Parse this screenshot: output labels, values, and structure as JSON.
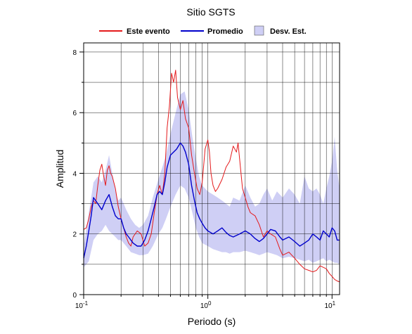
{
  "chart_data": {
    "type": "line",
    "title": "Sitio SGTS",
    "xlabel": "Periodo (s)",
    "ylabel": "Amplitud",
    "xscale": "log",
    "xlim": [
      0.1,
      11.5
    ],
    "ylim": [
      0,
      8.3
    ],
    "grid": true,
    "legend_position": "top",
    "x_tick_labels": [
      {
        "value": 0.1,
        "base": "10",
        "exp": "-1"
      },
      {
        "value": 1,
        "base": "10",
        "exp": "0"
      },
      {
        "value": 10,
        "base": "10",
        "exp": "1"
      }
    ],
    "y_ticks": [
      0,
      2,
      4,
      6,
      8
    ],
    "y_tick_labels": [
      "0",
      "2",
      "4",
      "6",
      "8"
    ],
    "colors": {
      "event": "#e41a1c",
      "mean": "#0000cc",
      "band": "#cfcff5"
    },
    "legend": [
      {
        "label": "Este evento",
        "kind": "line",
        "color": "#e41a1c"
      },
      {
        "label": "Promedio",
        "kind": "line",
        "color": "#0000cc"
      },
      {
        "label": "Desv. Est.",
        "kind": "area",
        "color": "#cfcff5"
      }
    ],
    "series": [
      {
        "name": "Este evento",
        "color": "#e41a1c",
        "x": [
          0.1,
          0.105,
          0.11,
          0.115,
          0.12,
          0.125,
          0.13,
          0.135,
          0.14,
          0.145,
          0.15,
          0.155,
          0.16,
          0.165,
          0.17,
          0.18,
          0.19,
          0.2,
          0.21,
          0.22,
          0.23,
          0.24,
          0.25,
          0.27,
          0.29,
          0.31,
          0.33,
          0.35,
          0.37,
          0.39,
          0.41,
          0.43,
          0.45,
          0.47,
          0.49,
          0.51,
          0.53,
          0.55,
          0.57,
          0.6,
          0.63,
          0.66,
          0.7,
          0.74,
          0.78,
          0.82,
          0.86,
          0.9,
          0.95,
          1.0,
          1.03,
          1.06,
          1.1,
          1.15,
          1.2,
          1.3,
          1.4,
          1.5,
          1.6,
          1.7,
          1.75,
          1.8,
          1.9,
          2.0,
          2.1,
          2.2,
          2.4,
          2.6,
          2.8,
          3.0,
          3.2,
          3.5,
          3.8,
          4.0,
          4.5,
          5.0,
          5.5,
          6.0,
          6.5,
          7.0,
          7.5,
          8.0,
          8.5,
          9.0,
          9.5,
          10.0,
          10.5,
          11.0,
          11.5
        ],
        "y": [
          2.15,
          2.2,
          2.5,
          2.9,
          3.1,
          3.0,
          3.6,
          4.1,
          4.3,
          3.9,
          3.6,
          4.1,
          4.25,
          4.0,
          3.9,
          3.5,
          2.9,
          2.5,
          2.2,
          1.9,
          1.7,
          1.6,
          1.9,
          2.1,
          2.0,
          1.6,
          1.7,
          2.0,
          2.7,
          3.3,
          3.6,
          3.3,
          4.0,
          5.5,
          6.2,
          7.3,
          7.0,
          7.4,
          6.5,
          6.1,
          6.4,
          5.8,
          5.5,
          4.6,
          4.0,
          3.5,
          3.3,
          3.7,
          4.8,
          5.1,
          4.7,
          4.0,
          3.6,
          3.4,
          3.5,
          3.8,
          4.2,
          4.4,
          4.9,
          4.7,
          5.0,
          4.5,
          3.5,
          3.2,
          2.9,
          2.7,
          2.6,
          2.3,
          1.9,
          2.1,
          2.0,
          1.9,
          1.5,
          1.3,
          1.4,
          1.2,
          1.0,
          0.85,
          0.8,
          0.75,
          0.8,
          0.95,
          0.9,
          0.85,
          0.7,
          0.6,
          0.5,
          0.45,
          0.42
        ]
      },
      {
        "name": "Promedio",
        "color": "#0000cc",
        "x": [
          0.1,
          0.105,
          0.11,
          0.115,
          0.12,
          0.13,
          0.14,
          0.15,
          0.16,
          0.17,
          0.18,
          0.19,
          0.2,
          0.21,
          0.22,
          0.23,
          0.24,
          0.25,
          0.27,
          0.29,
          0.31,
          0.33,
          0.35,
          0.37,
          0.39,
          0.41,
          0.43,
          0.45,
          0.47,
          0.5,
          0.53,
          0.56,
          0.6,
          0.63,
          0.66,
          0.7,
          0.74,
          0.78,
          0.82,
          0.86,
          0.9,
          0.95,
          1.0,
          1.1,
          1.2,
          1.3,
          1.4,
          1.5,
          1.6,
          1.8,
          2.0,
          2.2,
          2.4,
          2.6,
          2.8,
          3.0,
          3.2,
          3.5,
          3.8,
          4.0,
          4.5,
          5.0,
          5.5,
          6.0,
          6.5,
          7.0,
          7.5,
          8.0,
          8.5,
          9.0,
          9.5,
          10.0,
          10.5,
          11.0,
          11.5
        ],
        "y": [
          1.2,
          1.6,
          2.1,
          2.6,
          3.2,
          3.0,
          2.8,
          3.1,
          3.3,
          2.9,
          2.6,
          2.5,
          2.5,
          2.2,
          2.0,
          1.9,
          1.8,
          1.7,
          1.6,
          1.6,
          1.8,
          2.1,
          2.5,
          2.9,
          3.3,
          3.4,
          3.3,
          3.7,
          4.2,
          4.6,
          4.7,
          4.8,
          5.0,
          4.9,
          4.7,
          4.3,
          3.6,
          3.1,
          2.7,
          2.5,
          2.35,
          2.2,
          2.1,
          2.0,
          2.1,
          2.2,
          2.05,
          1.95,
          1.9,
          2.0,
          2.1,
          2.0,
          1.85,
          1.75,
          1.85,
          2.0,
          2.15,
          2.1,
          1.9,
          1.8,
          1.9,
          1.75,
          1.6,
          1.7,
          1.8,
          2.0,
          1.9,
          1.8,
          2.1,
          2.0,
          1.9,
          2.2,
          2.1,
          1.8,
          1.8
        ]
      }
    ],
    "band": {
      "name": "Desv. Est.",
      "color": "#cfcff5",
      "x": [
        0.1,
        0.11,
        0.12,
        0.13,
        0.14,
        0.15,
        0.16,
        0.17,
        0.18,
        0.19,
        0.2,
        0.22,
        0.24,
        0.26,
        0.28,
        0.3,
        0.33,
        0.36,
        0.4,
        0.43,
        0.46,
        0.5,
        0.55,
        0.6,
        0.65,
        0.7,
        0.75,
        0.8,
        0.85,
        0.9,
        1.0,
        1.1,
        1.2,
        1.3,
        1.4,
        1.5,
        1.6,
        1.8,
        2.0,
        2.2,
        2.4,
        2.6,
        2.8,
        3.0,
        3.3,
        3.6,
        4.0,
        4.5,
        5.0,
        5.5,
        6.0,
        6.5,
        7.0,
        7.5,
        8.0,
        8.5,
        9.0,
        9.5,
        10.0,
        10.5,
        11.0,
        11.5
      ],
      "upper": [
        1.6,
        2.7,
        3.7,
        3.9,
        3.7,
        4.1,
        4.6,
        4.0,
        3.4,
        3.1,
        3.2,
        2.8,
        2.5,
        2.3,
        2.2,
        2.3,
        2.6,
        3.2,
        3.8,
        4.2,
        4.6,
        5.3,
        6.0,
        6.6,
        6.7,
        6.1,
        5.2,
        4.5,
        3.9,
        3.6,
        3.4,
        3.3,
        3.2,
        3.1,
        3.0,
        2.9,
        3.2,
        3.1,
        3.6,
        3.2,
        2.9,
        3.0,
        3.3,
        3.5,
        3.1,
        3.4,
        3.2,
        3.5,
        3.3,
        3.0,
        3.9,
        3.5,
        3.4,
        3.5,
        3.3,
        3.0,
        3.5,
        3.9,
        4.4,
        5.2,
        4.1,
        3.5
      ],
      "lower": [
        0.9,
        1.1,
        1.8,
        2.0,
        2.1,
        2.3,
        2.1,
        2.0,
        1.9,
        1.8,
        1.8,
        1.6,
        1.4,
        1.35,
        1.3,
        1.3,
        1.35,
        1.6,
        2.0,
        2.2,
        2.5,
        2.9,
        3.3,
        3.6,
        3.5,
        3.2,
        2.7,
        2.2,
        1.9,
        1.7,
        1.6,
        1.5,
        1.45,
        1.4,
        1.4,
        1.35,
        1.4,
        1.4,
        1.45,
        1.4,
        1.35,
        1.3,
        1.35,
        1.4,
        1.35,
        1.3,
        1.2,
        1.25,
        1.2,
        1.15,
        1.1,
        1.15,
        1.05,
        1.1,
        1.15,
        1.2,
        1.1,
        1.15,
        1.1,
        1.05,
        1.05,
        1.0
      ]
    }
  }
}
